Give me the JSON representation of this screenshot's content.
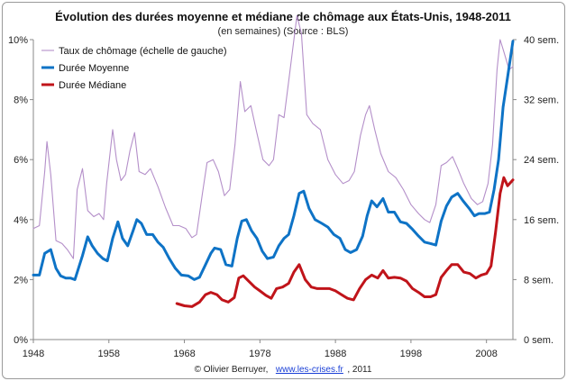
{
  "chart_data": {
    "type": "line",
    "title": "Évolution des durées moyenne et médiane de chômage aux États-Unis, 1948-2011",
    "subtitle": "(en semaines) (Source : BLS)",
    "credit_prefix": "© Olivier Berruyer,",
    "credit_link": "www.les-crises.fr",
    "credit_suffix": ", 2011",
    "xlim": [
      1948,
      2011.5
    ],
    "x_ticks": [
      1948,
      1958,
      1968,
      1978,
      1988,
      1998,
      2008
    ],
    "x_tick_labels": [
      "1948",
      "1958",
      "1968",
      "1978",
      "1988",
      "1998",
      "2008"
    ],
    "y_left": {
      "lim": [
        0,
        10
      ],
      "ticks": [
        0,
        2,
        4,
        6,
        8,
        10
      ],
      "tick_labels": [
        "0%",
        "2%",
        "4%",
        "6%",
        "8%",
        "10%"
      ]
    },
    "y_right": {
      "lim": [
        0,
        40
      ],
      "ticks": [
        0,
        8,
        16,
        24,
        32,
        40
      ],
      "tick_labels": [
        "0 sem.",
        "8 sem.",
        "16 sem.",
        "24 sem.",
        "32 sem.",
        "40 sem."
      ]
    },
    "grid": false,
    "legend": "top-left",
    "series": [
      {
        "name": "Taux de chômage (échelle de gauche)",
        "axis": "left",
        "color": "#b48fc9",
        "x": [
          1948,
          1948.8,
          1949.5,
          1949.8,
          1950.3,
          1951,
          1951.8,
          1952.5,
          1953.3,
          1953.8,
          1954.5,
          1955.2,
          1956,
          1956.7,
          1957.3,
          1957.7,
          1958.5,
          1959,
          1959.6,
          1960.2,
          1960.8,
          1961.4,
          1962,
          1962.8,
          1963.5,
          1964.5,
          1965.5,
          1966.5,
          1967.3,
          1968.2,
          1969,
          1969.6,
          1970.4,
          1971,
          1971.8,
          1972.5,
          1973.3,
          1974,
          1974.7,
          1975.4,
          1976,
          1976.8,
          1977.5,
          1978.4,
          1979.2,
          1979.8,
          1980.5,
          1981.2,
          1981.8,
          1982.4,
          1982.9,
          1983.5,
          1984.2,
          1985,
          1986,
          1987,
          1988,
          1989,
          1989.8,
          1990.5,
          1991.3,
          1992,
          1992.5,
          1993.2,
          1994,
          1995,
          1996,
          1997,
          1998,
          1999,
          1999.8,
          2000.5,
          2001.3,
          2002,
          2002.7,
          2003.5,
          2004.2,
          2005,
          2006,
          2006.8,
          2007.5,
          2008.2,
          2008.8,
          2009.4,
          2009.8,
          2010.3,
          2011,
          2011.5
        ],
        "values": [
          3.7,
          3.8,
          5.6,
          6.6,
          5.5,
          3.3,
          3.2,
          3.0,
          2.7,
          5.0,
          5.7,
          4.3,
          4.1,
          4.2,
          4.0,
          5.2,
          7.0,
          6.0,
          5.3,
          5.5,
          6.3,
          6.9,
          5.6,
          5.5,
          5.7,
          5.1,
          4.4,
          3.8,
          3.8,
          3.7,
          3.4,
          3.5,
          4.9,
          5.9,
          6.0,
          5.6,
          4.8,
          5.0,
          6.5,
          8.6,
          7.6,
          7.8,
          7.0,
          6.0,
          5.8,
          6.0,
          7.5,
          7.4,
          8.6,
          9.8,
          10.8,
          10.2,
          7.5,
          7.2,
          7.0,
          6.0,
          5.5,
          5.2,
          5.3,
          5.6,
          6.8,
          7.5,
          7.8,
          7.0,
          6.2,
          5.6,
          5.4,
          5.0,
          4.5,
          4.2,
          4.0,
          3.9,
          4.5,
          5.8,
          5.9,
          6.1,
          5.7,
          5.2,
          4.7,
          4.5,
          4.6,
          5.2,
          6.5,
          9.0,
          10.0,
          9.6,
          9.0,
          9.1
        ]
      },
      {
        "name": "Durée Moyenne",
        "axis": "right",
        "color": "#0e73c6",
        "x": [
          1948,
          1948.8,
          1949.5,
          1950.3,
          1951,
          1951.6,
          1952.3,
          1952.9,
          1953.5,
          1954.5,
          1955.2,
          1955.8,
          1956.5,
          1957.2,
          1957.8,
          1958.5,
          1959.2,
          1959.8,
          1960.5,
          1961.2,
          1961.7,
          1962.3,
          1963,
          1963.8,
          1964.5,
          1965.2,
          1966,
          1966.8,
          1967.6,
          1968.5,
          1969.3,
          1970,
          1970.8,
          1971.5,
          1972,
          1972.8,
          1973.5,
          1974.3,
          1975,
          1975.6,
          1976.2,
          1976.9,
          1977.6,
          1978.3,
          1979,
          1979.8,
          1980.5,
          1981.2,
          1981.8,
          1982.5,
          1983.2,
          1983.8,
          1984.5,
          1985.3,
          1986.2,
          1987,
          1987.8,
          1988.6,
          1989.3,
          1990,
          1990.8,
          1991.6,
          1992.2,
          1992.8,
          1993.5,
          1994.3,
          1995,
          1995.8,
          1996.6,
          1997.4,
          1998.2,
          1999,
          1999.8,
          2000.6,
          2001.3,
          2002,
          2002.7,
          2003.4,
          2004.2,
          2004.9,
          2005.7,
          2006.4,
          2007,
          2007.8,
          2008.4,
          2009,
          2009.6,
          2010.2,
          2010.8,
          2011.5
        ],
        "values": [
          8.6,
          8.6,
          11.5,
          12.0,
          9.5,
          8.5,
          8.2,
          8.2,
          8.0,
          11.2,
          13.7,
          12.5,
          11.5,
          10.8,
          10.5,
          13.5,
          15.7,
          13.5,
          12.5,
          14.5,
          16.0,
          15.5,
          14.0,
          14.0,
          13.0,
          12.3,
          10.8,
          9.5,
          8.6,
          8.5,
          8.0,
          8.3,
          10.0,
          11.5,
          12.2,
          12.0,
          10.0,
          9.8,
          13.5,
          15.8,
          16.0,
          14.5,
          13.5,
          11.8,
          10.8,
          11.0,
          12.5,
          13.5,
          14.0,
          16.5,
          19.5,
          19.8,
          17.5,
          16.0,
          15.5,
          15.0,
          14.0,
          13.5,
          12.0,
          11.6,
          12.0,
          13.8,
          16.5,
          18.5,
          17.7,
          18.8,
          17.0,
          17.0,
          15.7,
          15.5,
          14.7,
          13.8,
          13.0,
          12.8,
          12.6,
          15.8,
          17.8,
          19.0,
          19.5,
          18.5,
          17.5,
          16.5,
          16.8,
          16.8,
          17.0,
          20.0,
          24.0,
          31.0,
          35.0,
          39.8
        ]
      },
      {
        "name": "Durée Médiane",
        "axis": "right",
        "color": "#c0141a",
        "x": [
          1967,
          1968,
          1969,
          1970,
          1970.8,
          1971.5,
          1972.3,
          1973,
          1973.8,
          1974.6,
          1975.2,
          1975.8,
          1976.5,
          1977.3,
          1978,
          1978.8,
          1979.5,
          1980.2,
          1981,
          1981.8,
          1982.5,
          1983.2,
          1984,
          1984.8,
          1985.6,
          1986.4,
          1987.2,
          1988,
          1988.8,
          1989.6,
          1990.4,
          1991.2,
          1992,
          1992.8,
          1993.6,
          1994.3,
          1995,
          1995.8,
          1996.6,
          1997.4,
          1998.2,
          1999,
          1999.8,
          2000.6,
          2001.3,
          2002,
          2002.7,
          2003.4,
          2004.2,
          2005,
          2005.8,
          2006.6,
          2007.3,
          2008,
          2008.6,
          2009.2,
          2009.8,
          2010.3,
          2010.8,
          2011.5
        ],
        "values": [
          4.8,
          4.5,
          4.4,
          5.0,
          6.0,
          6.3,
          6.0,
          5.3,
          5.0,
          5.6,
          8.2,
          8.5,
          7.8,
          7.0,
          6.5,
          5.9,
          5.5,
          6.8,
          7.0,
          7.5,
          9.0,
          10.0,
          8.0,
          7.0,
          6.8,
          6.8,
          6.8,
          6.5,
          6.0,
          5.5,
          5.3,
          6.8,
          8.0,
          8.6,
          8.2,
          9.2,
          8.2,
          8.3,
          8.2,
          7.8,
          6.8,
          6.3,
          5.7,
          5.7,
          6.0,
          8.3,
          9.2,
          10.0,
          10.0,
          9.0,
          8.8,
          8.2,
          8.6,
          8.8,
          9.8,
          14.3,
          19.5,
          21.6,
          20.5,
          21.3
        ]
      }
    ]
  }
}
